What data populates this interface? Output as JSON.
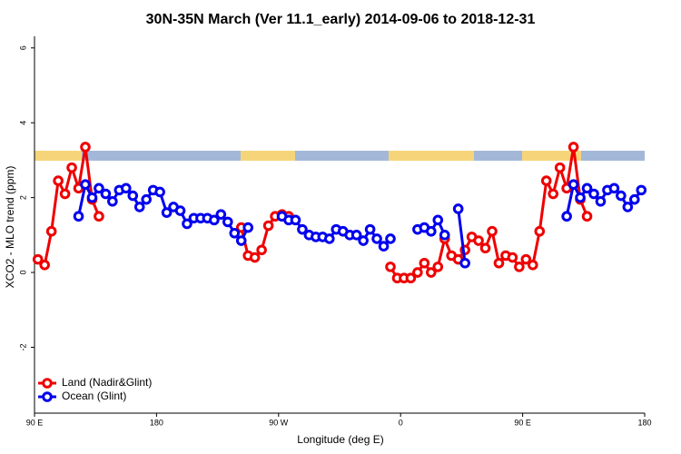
{
  "chart_data": {
    "type": "line",
    "title": "30N-35N March (Ver 11.1_early)   2014-09-06 to 2018-12-31",
    "x_label": "Longitude (deg E)",
    "y_label": "XCO2 - MLO trend (ppm)",
    "xlim": [
      90,
      540
    ],
    "ylim": [
      -3.76,
      6.31
    ],
    "xticks": [
      {
        "value": 90,
        "label": "90 E"
      },
      180,
      {
        "value": 270,
        "label": "90 W"
      },
      {
        "value": 360,
        "label": "0"
      },
      {
        "value": 450,
        "label": "90 E"
      },
      {
        "value": 540,
        "label": "180"
      }
    ],
    "yticks": [
      6,
      4,
      2,
      0,
      -2
    ],
    "legend": "bottom-left",
    "series": [
      {
        "name": "Land (Nadir&Glint)",
        "color": "#ee0000",
        "x": [
          92.5,
          97.5,
          102.5,
          107.5,
          112.5,
          117.5,
          122.5,
          127.5,
          132.5,
          137.5,
          142.5,
          242.5,
          247.5,
          252.5,
          257.5,
          262.5,
          267.5,
          272.5,
          277.5,
          282.5,
          352.5,
          357.5,
          362.5,
          367.5,
          372.5,
          377.5,
          382.5,
          387.5,
          392.5,
          397.5,
          402.5,
          407.5,
          412.5,
          417.5,
          422.5,
          427.5,
          432.5,
          437.5,
          442.5,
          447.5,
          452.5,
          457.5,
          462.5,
          467.5,
          472.5,
          477.5,
          482.5,
          487.5,
          492.5,
          497.5
        ],
        "values": [
          0.35,
          0.2,
          1.1,
          2.45,
          2.1,
          2.8,
          2.25,
          3.35,
          1.95,
          1.5,
          null,
          1.2,
          0.45,
          0.4,
          0.6,
          1.25,
          1.5,
          1.55,
          1.5,
          null,
          0.15,
          -0.15,
          -0.15,
          -0.15,
          0.0,
          0.25,
          0.0,
          0.15,
          0.9,
          0.45,
          0.35,
          0.6,
          0.95,
          0.85,
          0.65,
          1.1,
          0.25,
          0.45,
          0.4,
          0.15,
          0.35,
          0.2,
          1.1,
          2.45,
          2.1,
          2.8,
          2.25,
          3.35,
          1.95,
          1.5
        ]
      },
      {
        "name": "Ocean (Glint)",
        "color": "#0000ee",
        "x": [
          122.5,
          127.5,
          132.5,
          137.5,
          142.5,
          147.5,
          152.5,
          157.5,
          162.5,
          167.5,
          172.5,
          177.5,
          182.5,
          187.5,
          192.5,
          197.5,
          202.5,
          207.5,
          212.5,
          217.5,
          222.5,
          227.5,
          232.5,
          237.5,
          242.5,
          247.5,
          252.5,
          272.5,
          277.5,
          282.5,
          287.5,
          292.5,
          297.5,
          302.5,
          307.5,
          312.5,
          317.5,
          322.5,
          327.5,
          332.5,
          337.5,
          342.5,
          347.5,
          352.5,
          357.5,
          372.5,
          377.5,
          382.5,
          387.5,
          392.5,
          397.5,
          402.5,
          407.5,
          412.5,
          482.5,
          487.5,
          492.5,
          497.5,
          502.5,
          507.5,
          512.5,
          517.5,
          522.5,
          527.5,
          532.5,
          537.5
        ],
        "values": [
          1.5,
          2.35,
          2.0,
          2.25,
          2.1,
          1.9,
          2.2,
          2.25,
          2.05,
          1.75,
          1.95,
          2.2,
          2.15,
          1.6,
          1.75,
          1.65,
          1.3,
          1.45,
          1.45,
          1.45,
          1.4,
          1.55,
          1.35,
          1.05,
          0.85,
          1.2,
          null,
          1.5,
          1.4,
          1.4,
          1.15,
          1.0,
          0.95,
          0.95,
          0.9,
          1.15,
          1.1,
          1.0,
          1.0,
          0.85,
          1.15,
          0.9,
          0.7,
          0.9,
          null,
          1.15,
          1.2,
          1.1,
          1.4,
          1.0,
          null,
          1.7,
          0.25,
          null,
          1.5,
          2.35,
          2.0,
          2.25,
          2.1,
          1.9,
          2.2,
          2.25,
          2.05,
          1.75,
          1.95,
          2.2
        ]
      }
    ]
  }
}
